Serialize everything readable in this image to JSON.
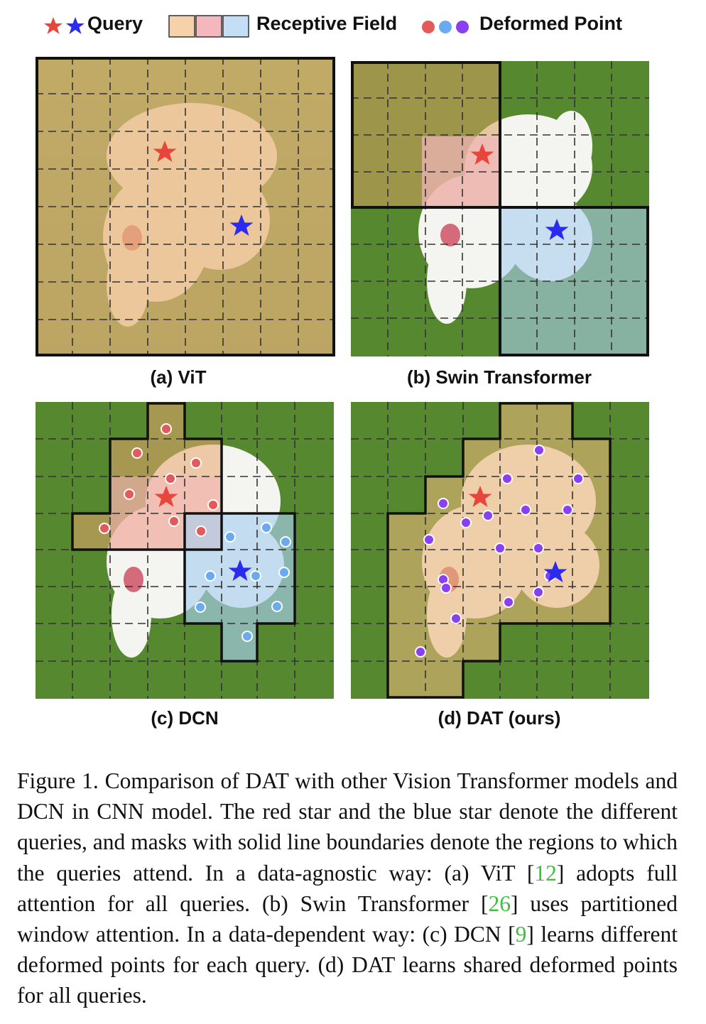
{
  "legend": {
    "query_label": "Query",
    "receptive_label": "Receptive Field",
    "deformed_label": "Deformed Point",
    "colors": {
      "red_star": "#e8453c",
      "blue_star": "#2b2bef",
      "red_point": "#e35a5a",
      "blue_point": "#6aaaf0",
      "purple_point": "#8a3ff0",
      "orange_field": "#f6d2aa",
      "pink_field": "#f4b7bd",
      "blue_field": "#c4def6"
    }
  },
  "panels": {
    "a": {
      "label": "(a) ViT"
    },
    "b": {
      "label": "(b) Swin Transformer"
    },
    "c": {
      "label": "(c) DCN"
    },
    "d": {
      "label": "(d) DAT (ours)"
    }
  },
  "caption": {
    "p1": "Figure 1. Comparison of DAT with other Vision Transformer models and DCN in CNN model. The red star and the blue star denote the different queries, and masks with solid line boundaries denote the regions to which the queries attend. In a data-agnostic way: (a) ViT [",
    "ref1": "12",
    "p2": "] adopts full attention for all queries. (b) Swin Transformer [",
    "ref2": "26",
    "p3": "] uses partitioned window attention. In a data-dependent way: (c) DCN [",
    "ref3": "9",
    "p4": "] learns different deformed points for each query. (d) DAT learns shared deformed points for all queries."
  }
}
